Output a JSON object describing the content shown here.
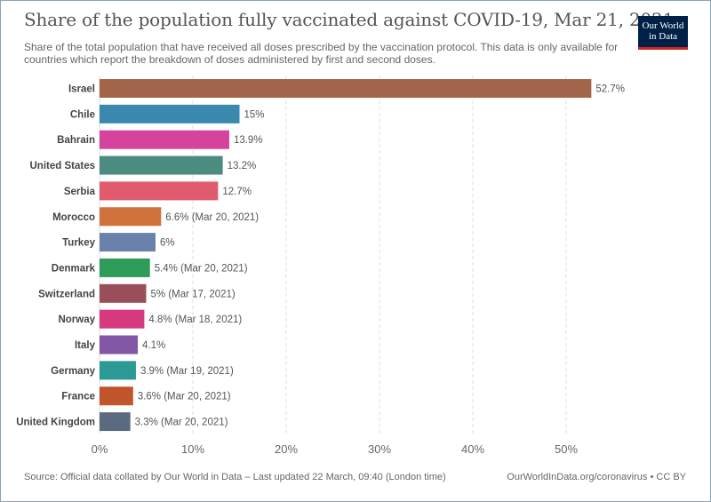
{
  "title": "Share of the population fully vaccinated against COVID-19, Mar 21, 2021",
  "subtitle": "Share of the total population that have received all doses prescribed by the vaccination protocol. This data is only available for countries which report the breakdown of doses administered by first and second doses.",
  "logo": {
    "line1": "Our World",
    "line2": "in Data",
    "bg_color": "#002147",
    "accent_color": "#ce261e"
  },
  "footer": {
    "source": "Source: Official data collated by Our World in Data – Last updated 22 March, 09:40 (London time)",
    "credit": "OurWorldInData.org/coronavirus • CC BY"
  },
  "chart_data": {
    "type": "bar",
    "orientation": "horizontal",
    "title": "Share of the population fully vaccinated against COVID-19, Mar 21, 2021",
    "xlim": [
      0,
      55
    ],
    "xticks": [
      0,
      10,
      20,
      30,
      40,
      50
    ],
    "xtick_labels": [
      "0%",
      "10%",
      "20%",
      "30%",
      "40%",
      "50%"
    ],
    "grid": "vertical dashed",
    "categories": [
      "Israel",
      "Chile",
      "Bahrain",
      "United States",
      "Serbia",
      "Morocco",
      "Turkey",
      "Denmark",
      "Switzerland",
      "Norway",
      "Italy",
      "Germany",
      "France",
      "United Kingdom"
    ],
    "values": [
      52.7,
      15,
      13.9,
      13.2,
      12.7,
      6.6,
      6,
      5.4,
      5,
      4.8,
      4.1,
      3.9,
      3.6,
      3.3
    ],
    "value_labels": [
      "52.7%",
      "15%",
      "13.9%",
      "13.2%",
      "12.7%",
      "6.6% (Mar 20, 2021)",
      "6%",
      "5.4% (Mar 20, 2021)",
      "5% (Mar 17, 2021)",
      "4.8% (Mar 18, 2021)",
      "4.1%",
      "3.9% (Mar 19, 2021)",
      "3.6% (Mar 20, 2021)",
      "3.3% (Mar 20, 2021)"
    ],
    "colors": [
      "#a2654a",
      "#3a88ae",
      "#d5439d",
      "#4c8b7f",
      "#df5b6d",
      "#cf713a",
      "#6a81ab",
      "#2e9b59",
      "#994e5a",
      "#d7397e",
      "#8157a6",
      "#2c9a94",
      "#c1542b",
      "#5a6a7f"
    ]
  }
}
